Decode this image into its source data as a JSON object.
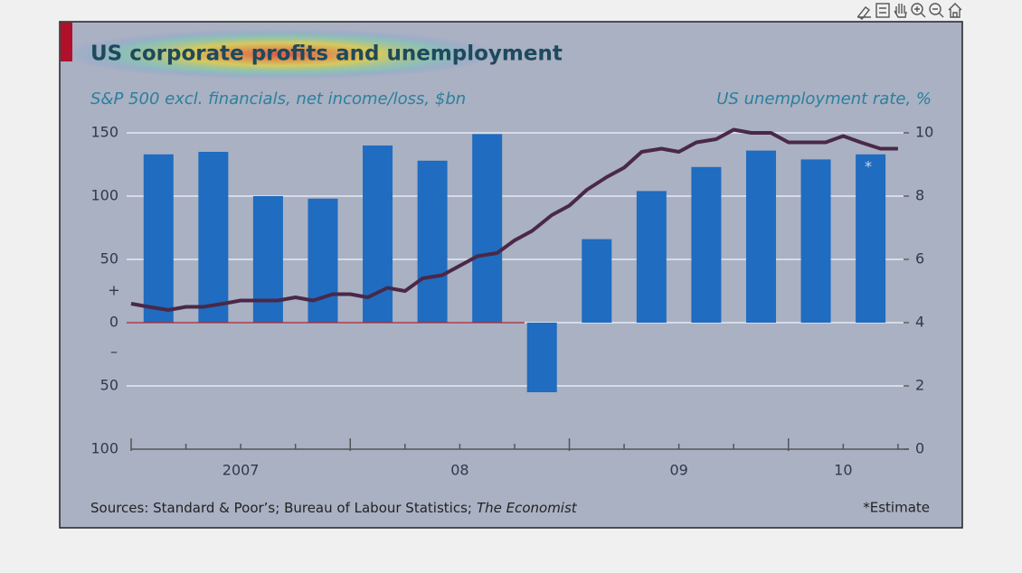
{
  "chart_data": {
    "type": "bar-line",
    "title": "US corporate profits and unemployment",
    "subtitle_left": "S&P 500 excl. financials, net income/loss, $bn",
    "subtitle_right": "US unemployment rate, %",
    "source": "Sources: Standard & Poor’s; Bureau of Labour Statistics;",
    "source_italic": "The Economist",
    "note": "*Estimate",
    "estimate_mark": "*",
    "plus_sign": "+",
    "minus_sign": "–",
    "xlim": [
      2007,
      2010.55
    ],
    "xticks": [
      2007,
      2008,
      2009,
      2010
    ],
    "xminor": [
      2007.25,
      2007.5,
      2007.75,
      2008.25,
      2008.5,
      2008.75,
      2009.25,
      2009.5,
      2009.75,
      2010.25,
      2010.5
    ],
    "xlabels": [
      {
        "value": 2007.5,
        "label": "2007"
      },
      {
        "value": 2008.5,
        "label": "08"
      },
      {
        "value": 2009.5,
        "label": "09"
      },
      {
        "value": 2010.25,
        "label": "10"
      }
    ],
    "ylim": [
      -100,
      150
    ],
    "yticks": [
      {
        "value": -100,
        "label": "100"
      },
      {
        "value": -50,
        "label": "50"
      },
      0,
      50,
      100,
      150
    ],
    "y2lim": [
      0,
      10
    ],
    "y2ticks": [
      0,
      2,
      4,
      6,
      8,
      10
    ],
    "grid": true,
    "series": [
      {
        "name": "S&P 500 excl. financials, net income/loss",
        "kind": "bar",
        "color": "#1f6cc0",
        "x": [
          2007.125,
          2007.375,
          2007.625,
          2007.875,
          2008.125,
          2008.375,
          2008.625,
          2008.875,
          2009.125,
          2009.375,
          2009.625,
          2009.875,
          2010.125,
          2010.375
        ],
        "values": [
          133,
          135,
          100,
          98,
          140,
          128,
          149,
          -55,
          66,
          104,
          123,
          136,
          129,
          133
        ]
      },
      {
        "name": "US unemployment rate",
        "kind": "line",
        "axis": "y2",
        "color": "#4a2847",
        "x": [
          2007.0,
          2007.08,
          2007.17,
          2007.25,
          2007.33,
          2007.42,
          2007.5,
          2007.58,
          2007.67,
          2007.75,
          2007.83,
          2007.92,
          2008.0,
          2008.08,
          2008.17,
          2008.25,
          2008.33,
          2008.42,
          2008.5,
          2008.58,
          2008.67,
          2008.75,
          2008.83,
          2008.92,
          2009.0,
          2009.08,
          2009.17,
          2009.25,
          2009.33,
          2009.42,
          2009.5,
          2009.58,
          2009.67,
          2009.75,
          2009.83,
          2009.92,
          2010.0,
          2010.08,
          2010.17,
          2010.25,
          2010.33,
          2010.42,
          2010.5
        ],
        "values": [
          4.6,
          4.5,
          4.4,
          4.5,
          4.5,
          4.6,
          4.7,
          4.7,
          4.7,
          4.8,
          4.7,
          4.9,
          4.9,
          4.8,
          5.1,
          5.0,
          5.4,
          5.5,
          5.8,
          6.1,
          6.2,
          6.6,
          6.9,
          7.4,
          7.7,
          8.2,
          8.6,
          8.9,
          9.4,
          9.5,
          9.4,
          9.7,
          9.8,
          10.1,
          10.0,
          10.0,
          9.7,
          9.7,
          9.7,
          9.9,
          9.7,
          9.5,
          9.5
        ]
      }
    ]
  }
}
